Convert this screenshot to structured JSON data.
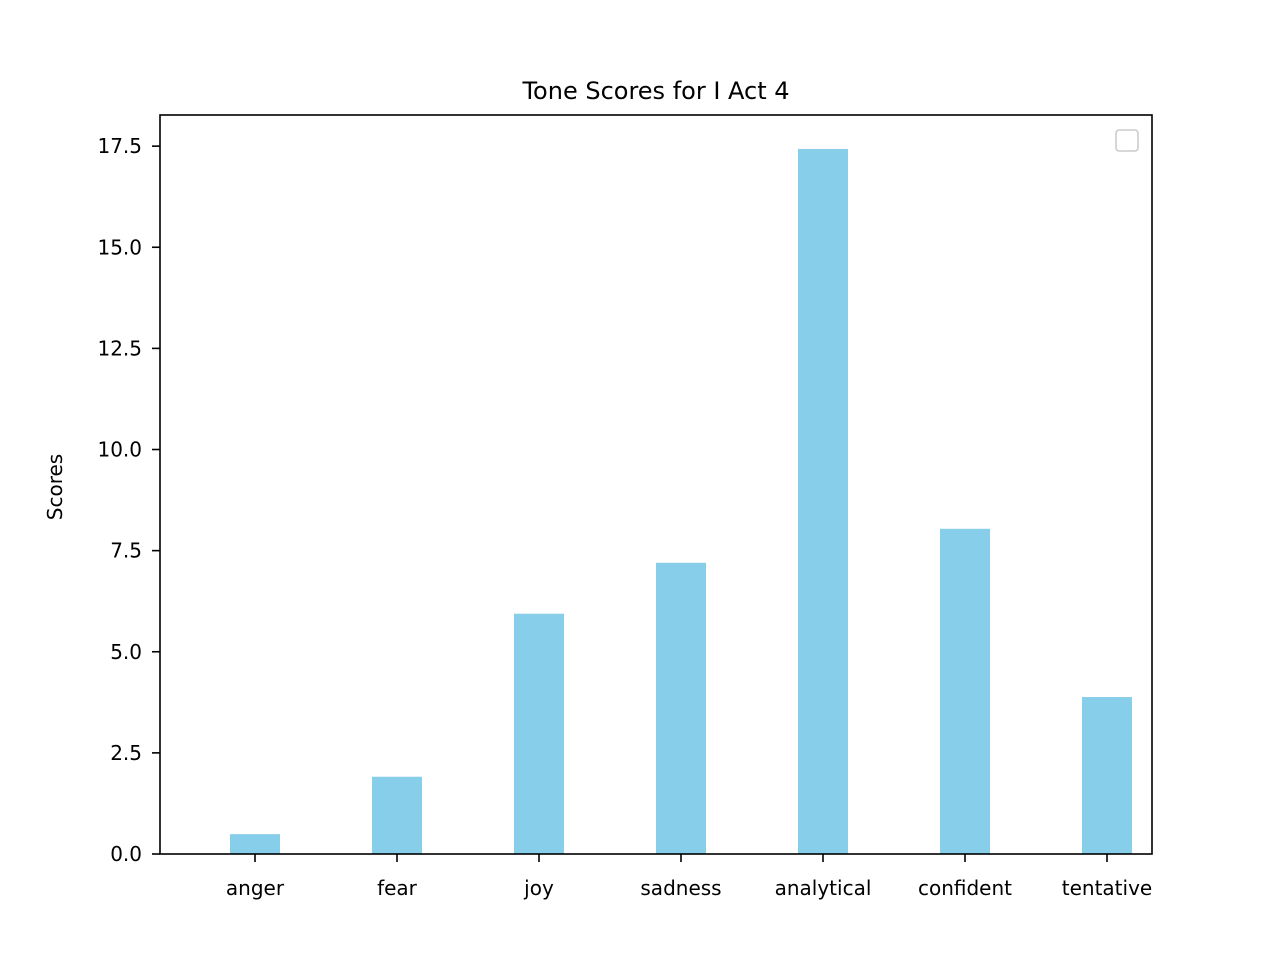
{
  "chart_data": {
    "type": "bar",
    "title": "Tone Scores for I Act 4",
    "xlabel": "",
    "ylabel": "Scores",
    "categories": [
      "anger",
      "fear",
      "joy",
      "sadness",
      "analytical",
      "confident",
      "tentative"
    ],
    "values": [
      0.49,
      1.91,
      5.94,
      7.2,
      17.43,
      8.04,
      3.88
    ],
    "ylim": [
      0,
      18.27
    ],
    "yticks": [
      0.0,
      2.5,
      5.0,
      7.5,
      10.0,
      12.5,
      15.0,
      17.5
    ],
    "ytick_labels": [
      "0.0",
      "2.5",
      "5.0",
      "7.5",
      "10.0",
      "12.5",
      "15.0",
      "17.5"
    ],
    "bar_color": "#87ceeb",
    "grid": false,
    "legend": {
      "visible": true,
      "placement": "top-right",
      "entries": []
    }
  }
}
